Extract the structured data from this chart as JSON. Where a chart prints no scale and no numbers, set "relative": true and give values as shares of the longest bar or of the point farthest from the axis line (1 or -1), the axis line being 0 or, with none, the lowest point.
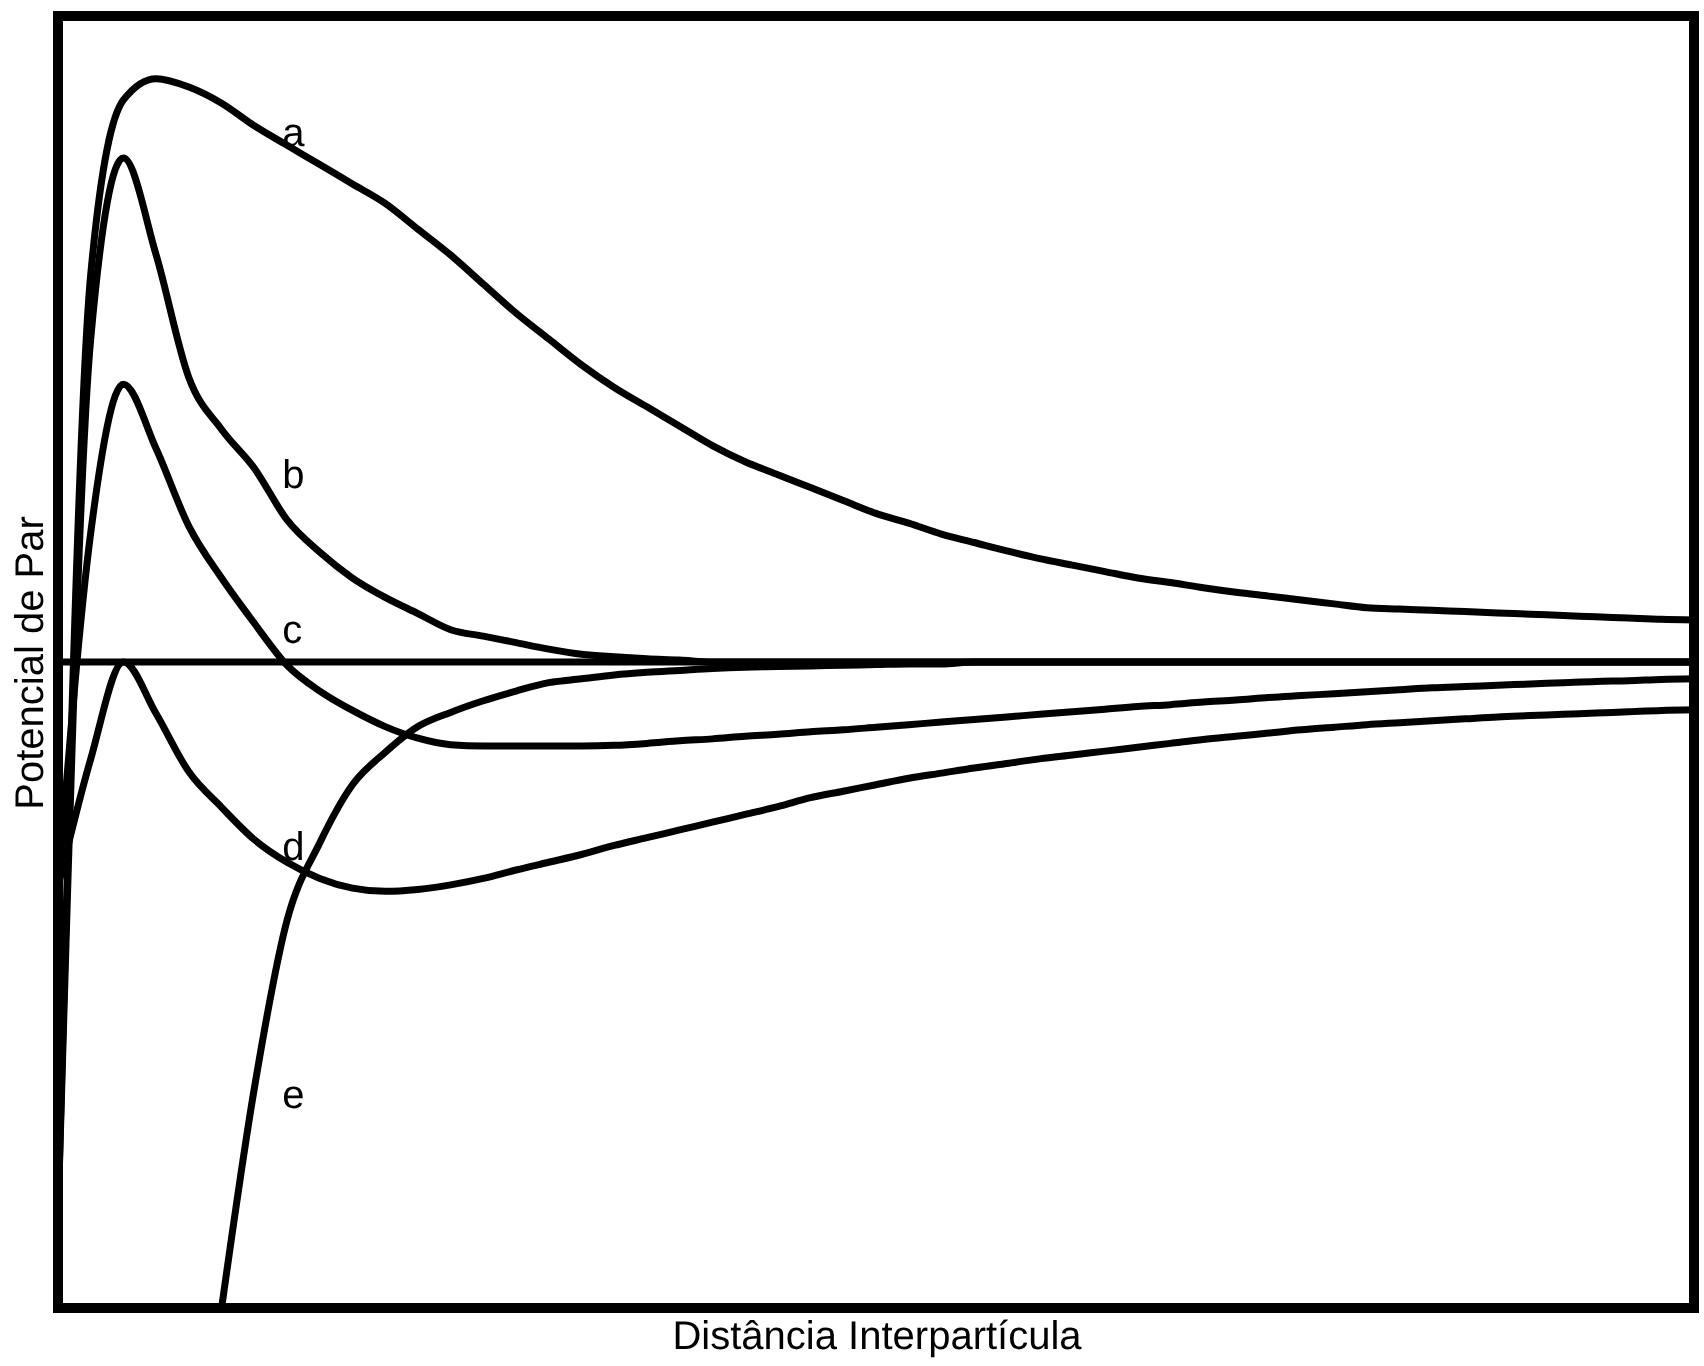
{
  "chart_data": {
    "type": "line",
    "relative": true,
    "xlabel": "Distância Interpartícula",
    "ylabel": "Potencial de Par",
    "tick_labels": false,
    "grid": false,
    "legend": false,
    "marker": "none",
    "line_style": "solid",
    "categories": [
      null,
      null,
      null,
      null,
      null,
      null,
      null,
      null,
      null,
      null,
      null,
      null,
      null,
      null,
      null,
      null,
      null,
      null,
      null,
      null,
      null,
      null,
      null,
      null,
      null,
      null,
      null,
      null,
      null,
      null,
      null,
      null,
      null,
      null,
      null,
      null,
      null,
      null,
      null,
      null,
      null,
      null,
      null,
      null,
      null,
      null,
      null,
      null,
      null,
      null,
      null
    ],
    "series": [
      {
        "name": "a",
        "color": "#000000",
        "values": [
          -0.858,
          0.6,
          0.87,
          0.903,
          0.89,
          0.865,
          0.83,
          0.8,
          0.77,
          0.74,
          0.71,
          0.67,
          0.63,
          0.585,
          0.54,
          0.5,
          0.46,
          0.425,
          0.395,
          0.365,
          0.335,
          0.31,
          0.29,
          0.27,
          0.25,
          0.23,
          0.215,
          0.198,
          0.185,
          0.172,
          0.16,
          0.15,
          0.14,
          0.13,
          0.123,
          0.115,
          0.108,
          0.102,
          0.096,
          0.09,
          0.084,
          0.082,
          0.08,
          0.078,
          0.076,
          0.074,
          0.072,
          0.07,
          0.068,
          0.066,
          0.065
        ]
      },
      {
        "name": "b",
        "color": "#000000",
        "values": [
          -0.858,
          0.5,
          0.78,
          0.63,
          0.44,
          0.36,
          0.3,
          0.22,
          0.17,
          0.13,
          0.1,
          0.075,
          0.05,
          0.04,
          0.03,
          0.02,
          0.012,
          0.008,
          0.005,
          0.003,
          0,
          0,
          0,
          0,
          0,
          0,
          0,
          0,
          0,
          0,
          0,
          0,
          0,
          0,
          0,
          0,
          0,
          0,
          0,
          0,
          0,
          0,
          0,
          0,
          0,
          0,
          0,
          0,
          0,
          0,
          0
        ]
      },
      {
        "name": "c",
        "color": "#000000",
        "values": [
          -0.348,
          0.2,
          0.43,
          0.33,
          0.21,
          0.13,
          0.06,
          -0.005,
          -0.045,
          -0.075,
          -0.1,
          -0.118,
          -0.128,
          -0.13,
          -0.13,
          -0.13,
          -0.13,
          -0.129,
          -0.126,
          -0.122,
          -0.119,
          -0.115,
          -0.112,
          -0.108,
          -0.105,
          -0.101,
          -0.097,
          -0.093,
          -0.089,
          -0.085,
          -0.081,
          -0.077,
          -0.073,
          -0.069,
          -0.066,
          -0.062,
          -0.059,
          -0.055,
          -0.052,
          -0.049,
          -0.046,
          -0.043,
          -0.04,
          -0.038,
          -0.036,
          -0.034,
          -0.032,
          -0.03,
          -0.029,
          -0.027,
          -0.026
        ]
      },
      {
        "name": "d",
        "color": "#000000",
        "values": [
          -0.348,
          -0.15,
          0.0,
          -0.08,
          -0.17,
          -0.225,
          -0.275,
          -0.31,
          -0.335,
          -0.35,
          -0.355,
          -0.352,
          -0.345,
          -0.335,
          -0.322,
          -0.31,
          -0.298,
          -0.284,
          -0.272,
          -0.26,
          -0.248,
          -0.236,
          -0.224,
          -0.21,
          -0.2,
          -0.19,
          -0.18,
          -0.172,
          -0.164,
          -0.157,
          -0.15,
          -0.144,
          -0.138,
          -0.132,
          -0.126,
          -0.12,
          -0.115,
          -0.11,
          -0.105,
          -0.101,
          -0.097,
          -0.094,
          -0.091,
          -0.088,
          -0.085,
          -0.083,
          -0.081,
          -0.079,
          -0.077,
          -0.075,
          -0.074
        ]
      },
      {
        "name": "e",
        "color": "#000000",
        "values": [
          null,
          null,
          null,
          null,
          null,
          -1,
          -0.66,
          -0.4,
          -0.28,
          -0.19,
          -0.14,
          -0.1,
          -0.078,
          -0.06,
          -0.045,
          -0.032,
          -0.026,
          -0.02,
          -0.016,
          -0.013,
          -0.01,
          -0.008,
          -0.007,
          -0.006,
          -0.005,
          -0.004,
          -0.003,
          -0.003,
          0,
          0,
          0,
          0,
          0,
          0,
          0,
          0,
          0,
          0,
          0,
          0,
          0,
          0,
          0,
          0,
          0,
          0,
          0,
          0,
          0,
          0,
          0
        ]
      }
    ],
    "ref_lines": [
      {
        "axis": "y",
        "value": 0,
        "color": "#000000"
      }
    ]
  }
}
